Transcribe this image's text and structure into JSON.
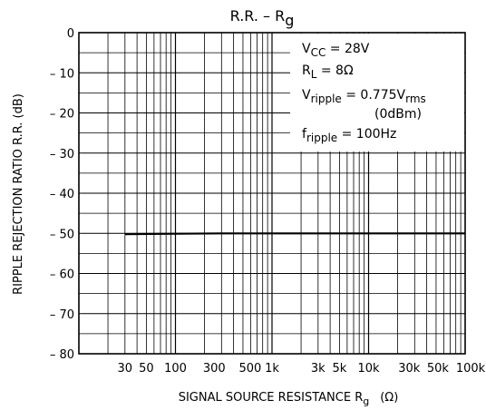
{
  "chart_data": {
    "type": "line",
    "title": "R.R. – R",
    "title_subscript": "g",
    "xlabel": "SIGNAL SOURCE RESISTANCE   R",
    "xlabel_subscript": "g",
    "xlabel_unit": "(Ω)",
    "ylabel": "RIPPLE REJECTION RATIO   R.R.   (dB)",
    "x_scale": "log",
    "xlim": [
      10,
      100000
    ],
    "ylim": [
      -80,
      0
    ],
    "grid": true,
    "x_ticks": [
      {
        "value": 30,
        "label": "30"
      },
      {
        "value": 50,
        "label": "50"
      },
      {
        "value": 100,
        "label": "100"
      },
      {
        "value": 300,
        "label": "300"
      },
      {
        "value": 500,
        "label": "500"
      },
      {
        "value": 1000,
        "label": "1k"
      },
      {
        "value": 3000,
        "label": "3k"
      },
      {
        "value": 5000,
        "label": "5k"
      },
      {
        "value": 10000,
        "label": "10k"
      },
      {
        "value": 30000,
        "label": "30k"
      },
      {
        "value": 50000,
        "label": "50k"
      },
      {
        "value": 100000,
        "label": "100k"
      }
    ],
    "y_ticks": [
      {
        "value": 0,
        "label": "0"
      },
      {
        "value": -10,
        "label": "– 10"
      },
      {
        "value": -20,
        "label": "– 20"
      },
      {
        "value": -30,
        "label": "– 30"
      },
      {
        "value": -40,
        "label": "– 40"
      },
      {
        "value": -50,
        "label": "– 50"
      },
      {
        "value": -60,
        "label": "– 60"
      },
      {
        "value": -70,
        "label": "– 70"
      },
      {
        "value": -80,
        "label": "– 80"
      }
    ],
    "series": [
      {
        "x": [
          30,
          100,
          300,
          1000,
          3000,
          10000,
          100000
        ],
        "y": [
          -50.2,
          -50.1,
          -50.0,
          -50.0,
          -50.0,
          -50.0,
          -50.0
        ]
      }
    ],
    "conditions": [
      {
        "main": "V",
        "sub": "CC",
        "rest": " = 28V"
      },
      {
        "main": "R",
        "sub": "L",
        "rest": " = 8Ω"
      },
      {
        "main": "V",
        "sub": "ripple",
        "rest": " = 0.775V",
        "sub2": "rms"
      },
      {
        "main": "",
        "sub": "",
        "rest": "(0dBm)"
      },
      {
        "main": "f",
        "sub": "ripple",
        "rest": " = 100Hz"
      }
    ]
  }
}
